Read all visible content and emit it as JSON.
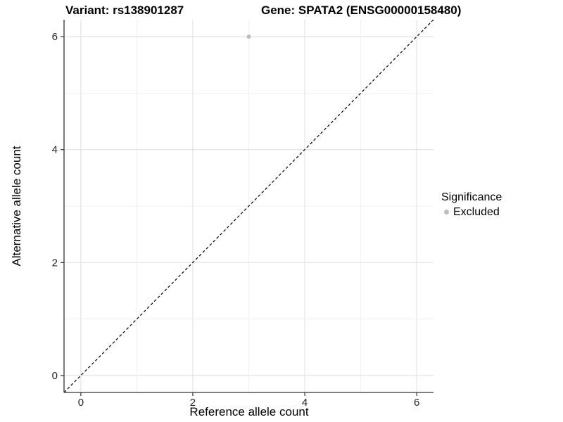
{
  "titles": {
    "left": "Variant: rs138901287",
    "right": "Gene: SPATA2 (ENSG00000158480)"
  },
  "legend": {
    "title": "Significance",
    "items": [
      {
        "label": "Excluded",
        "color": "#bdbdbd"
      }
    ]
  },
  "chart_data": {
    "type": "scatter",
    "title_left": "Variant: rs138901287",
    "title_right": "Gene: SPATA2 (ENSG00000158480)",
    "xlabel": "Reference allele count",
    "ylabel": "Alternative allele count",
    "xlim": [
      -0.3,
      6.3
    ],
    "ylim": [
      -0.3,
      6.3
    ],
    "xticks": [
      0,
      2,
      4,
      6
    ],
    "yticks": [
      0,
      2,
      4,
      6
    ],
    "minor_xticks": [
      1,
      3,
      5
    ],
    "minor_yticks": [
      1,
      3,
      5
    ],
    "grid": true,
    "legend_position": "right",
    "series": [
      {
        "name": "Excluded",
        "color": "#bdbdbd",
        "points": [
          {
            "x": 3,
            "y": 6
          }
        ]
      }
    ],
    "identity_line": {
      "from": [
        -0.3,
        -0.3
      ],
      "to": [
        6.3,
        6.3
      ],
      "style": "dashed",
      "color": "#000000"
    },
    "colors": {
      "background": "#ffffff",
      "grid_major": "#e3e3e3",
      "grid_minor": "#efefef",
      "axis_line": "#333333",
      "tick_mark": "#333333",
      "tick_text": "#262626",
      "point": "#bdbdbd"
    }
  }
}
